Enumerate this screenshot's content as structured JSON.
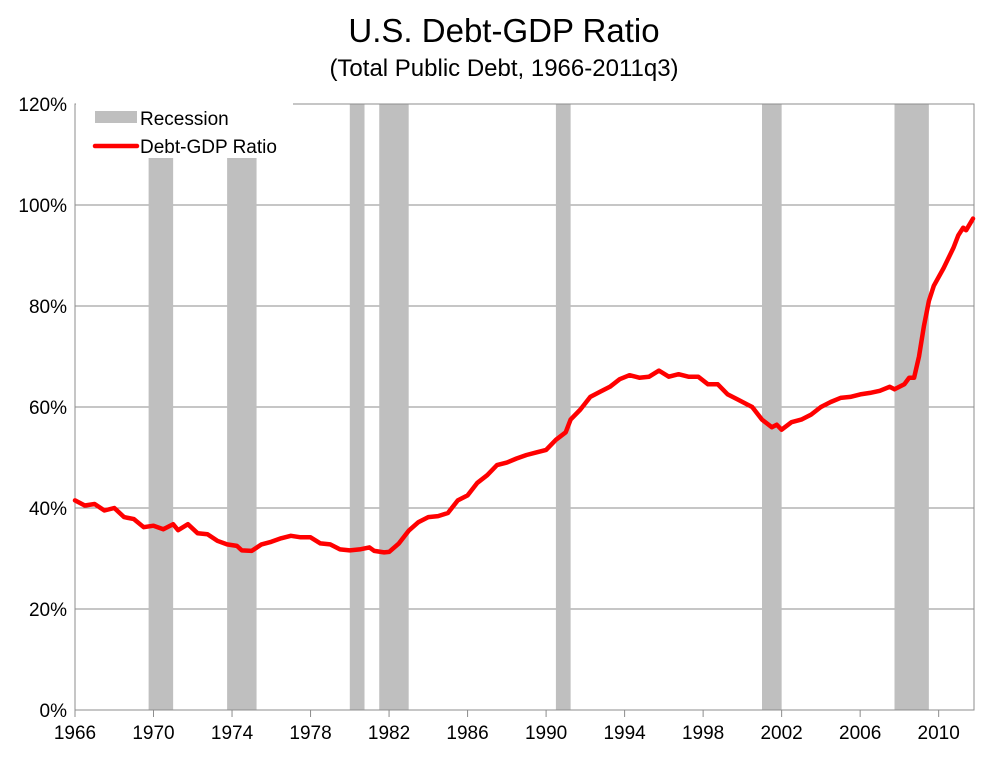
{
  "chart_data": {
    "type": "line",
    "title": "U.S. Debt-GDP Ratio",
    "subtitle": "(Total Public Debt, 1966-2011q3)",
    "xlabel": "",
    "ylabel": "",
    "xlim": [
      1966,
      2011.8
    ],
    "ylim": [
      0,
      120
    ],
    "x_ticks": [
      1966,
      1970,
      1974,
      1978,
      1982,
      1986,
      1990,
      1994,
      1998,
      2002,
      2006,
      2010
    ],
    "y_ticks": [
      "0%",
      "20%",
      "40%",
      "60%",
      "80%",
      "100%",
      "120%"
    ],
    "y_tick_values": [
      0,
      20,
      40,
      60,
      80,
      100,
      120
    ],
    "grid": "horizontal",
    "legend_placement": "top-left",
    "colors": {
      "line": "#ff0000",
      "recession": "#bfbfbf",
      "grid": "#8c8c8c"
    },
    "recessions": {
      "name": "Recession",
      "spans": [
        [
          1969.75,
          1971
        ],
        [
          1973.75,
          1975.25
        ],
        [
          1980,
          1980.75
        ],
        [
          1981.5,
          1983
        ],
        [
          1990.5,
          1991.25
        ],
        [
          2001,
          2002
        ],
        [
          2007.75,
          2009.5
        ]
      ]
    },
    "series": [
      {
        "name": "Debt-GDP Ratio",
        "x": [
          1966,
          1966.5,
          1967,
          1967.5,
          1968,
          1968.5,
          1969,
          1969.5,
          1970,
          1970.5,
          1971,
          1971.25,
          1971.75,
          1972.25,
          1972.75,
          1973.25,
          1973.75,
          1974.25,
          1974.5,
          1975,
          1975.5,
          1976,
          1976.5,
          1977,
          1977.5,
          1978,
          1978.5,
          1979,
          1979.5,
          1980,
          1980.5,
          1981,
          1981.25,
          1981.75,
          1982,
          1982.5,
          1983,
          1983.5,
          1984,
          1984.5,
          1985,
          1985.5,
          1986,
          1986.5,
          1987,
          1987.5,
          1988,
          1988.5,
          1989,
          1989.5,
          1990,
          1990.5,
          1991,
          1991.25,
          1991.75,
          1992.25,
          1992.75,
          1993.25,
          1993.75,
          1994.25,
          1994.75,
          1995.25,
          1995.75,
          1996.25,
          1996.75,
          1997.25,
          1997.75,
          1998.25,
          1998.75,
          1999.25,
          1999.75,
          2000.25,
          2000.5,
          2001,
          2001.5,
          2001.75,
          2002,
          2002.5,
          2003,
          2003.5,
          2004,
          2004.5,
          2005,
          2005.5,
          2006,
          2006.5,
          2007,
          2007.5,
          2007.75,
          2008.25,
          2008.5,
          2008.75,
          2009,
          2009.25,
          2009.5,
          2009.75,
          2010.25,
          2010.75,
          2011,
          2011.25,
          2011.4,
          2011.75
        ],
        "values": [
          41.5,
          40.5,
          40.8,
          39.5,
          40,
          38.2,
          37.8,
          36.2,
          36.5,
          35.8,
          36.8,
          35.6,
          36.8,
          35,
          34.8,
          33.5,
          32.8,
          32.5,
          31.6,
          31.5,
          32.8,
          33.3,
          34,
          34.5,
          34.2,
          34.2,
          33,
          32.8,
          31.8,
          31.6,
          31.8,
          32.2,
          31.5,
          31.2,
          31.3,
          33,
          35.5,
          37.2,
          38.2,
          38.4,
          39,
          41.5,
          42.5,
          45,
          46.5,
          48.5,
          49,
          49.8,
          50.5,
          51,
          51.5,
          53.5,
          55,
          57.5,
          59.5,
          62,
          63,
          64,
          65.5,
          66.3,
          65.8,
          66,
          67.2,
          66,
          66.5,
          66,
          66,
          64.5,
          64.5,
          62.5,
          61.5,
          60.5,
          60,
          57.5,
          56,
          56.5,
          55.5,
          57,
          57.5,
          58.5,
          60,
          61,
          61.8,
          62,
          62.5,
          62.8,
          63.2,
          64,
          63.5,
          64.5,
          65.8,
          65.8,
          70,
          76,
          81,
          84,
          87.5,
          91.5,
          94,
          95.5,
          95,
          97.3
        ]
      }
    ]
  }
}
